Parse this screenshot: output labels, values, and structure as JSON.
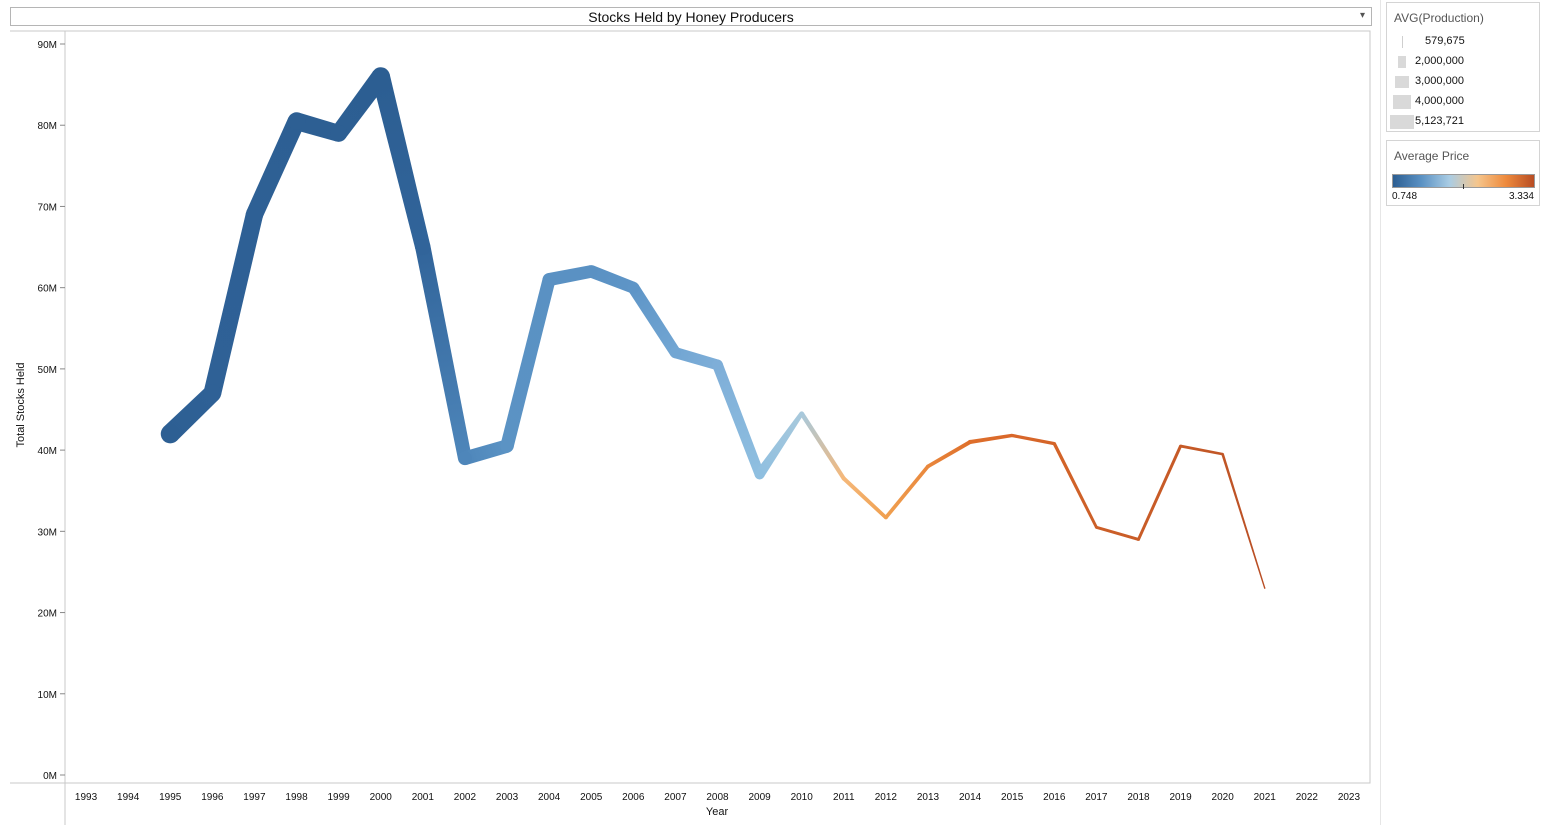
{
  "chart_data": {
    "type": "line",
    "title": "Stocks Held by Honey Producers",
    "xlabel": "Year",
    "ylabel": "Total Stocks Held",
    "x_ticks": [
      "1993",
      "1994",
      "1995",
      "1996",
      "1997",
      "1998",
      "1999",
      "2000",
      "2001",
      "2002",
      "2003",
      "2004",
      "2005",
      "2006",
      "2007",
      "2008",
      "2009",
      "2010",
      "2011",
      "2012",
      "2013",
      "2014",
      "2015",
      "2016",
      "2017",
      "2018",
      "2019",
      "2020",
      "2021",
      "2022",
      "2023"
    ],
    "y_ticks": [
      "0M",
      "10M",
      "20M",
      "30M",
      "40M",
      "50M",
      "60M",
      "70M",
      "80M",
      "90M"
    ],
    "xlim": [
      1992.5,
      2023.5
    ],
    "ylim": [
      0,
      92000000
    ],
    "series": [
      {
        "x": 1995,
        "stocks": 42000000,
        "avg_production": 5123721,
        "avg_price": 0.75,
        "color": "#2d5f93"
      },
      {
        "x": 1996,
        "stocks": 47000000,
        "avg_production": 4800000,
        "avg_price": 0.8,
        "color": "#2f6196"
      },
      {
        "x": 1997,
        "stocks": 69000000,
        "avg_production": 4700000,
        "avg_price": 0.78,
        "color": "#2e6095"
      },
      {
        "x": 1998,
        "stocks": 80500000,
        "avg_production": 4800000,
        "avg_price": 0.76,
        "color": "#2d5f93"
      },
      {
        "x": 1999,
        "stocks": 79000000,
        "avg_production": 4600000,
        "avg_price": 0.75,
        "color": "#2d5f93"
      },
      {
        "x": 2000,
        "stocks": 86000000,
        "avg_production": 5000000,
        "avg_price": 0.75,
        "color": "#2c5e92"
      },
      {
        "x": 2001,
        "stocks": 65000000,
        "avg_production": 4200000,
        "avg_price": 0.8,
        "color": "#31649a"
      },
      {
        "x": 2002,
        "stocks": 39000000,
        "avg_production": 3800000,
        "avg_price": 1.2,
        "color": "#4e86ba"
      },
      {
        "x": 2003,
        "stocks": 40500000,
        "avg_production": 3700000,
        "avg_price": 1.4,
        "color": "#5b93c4"
      },
      {
        "x": 2004,
        "stocks": 61000000,
        "avg_production": 3600000,
        "avg_price": 1.3,
        "color": "#5a91c3"
      },
      {
        "x": 2005,
        "stocks": 62000000,
        "avg_production": 3500000,
        "avg_price": 1.25,
        "color": "#5a91c3"
      },
      {
        "x": 2006,
        "stocks": 60000000,
        "avg_production": 3300000,
        "avg_price": 1.35,
        "color": "#5e95c7"
      },
      {
        "x": 2007,
        "stocks": 52000000,
        "avg_production": 3100000,
        "avg_price": 1.45,
        "color": "#72a6d3"
      },
      {
        "x": 2008,
        "stocks": 50500000,
        "avg_production": 3000000,
        "avg_price": 1.55,
        "color": "#7eaed8"
      },
      {
        "x": 2009,
        "stocks": 37000000,
        "avg_production": 2800000,
        "avg_price": 1.7,
        "color": "#8fbfe0"
      },
      {
        "x": 2010,
        "stocks": 44500000,
        "avg_production": 1400000,
        "avg_price": 1.9,
        "color": "#a8c9dc"
      },
      {
        "x": 2011,
        "stocks": 36500000,
        "avg_production": 1300000,
        "avg_price": 2.2,
        "color": "#f5b87a"
      },
      {
        "x": 2012,
        "stocks": 31700000,
        "avg_production": 1200000,
        "avg_price": 2.35,
        "color": "#f0a050"
      },
      {
        "x": 2013,
        "stocks": 38000000,
        "avg_production": 1200000,
        "avg_price": 2.55,
        "color": "#e9873c"
      },
      {
        "x": 2014,
        "stocks": 41000000,
        "avg_production": 1300000,
        "avg_price": 2.7,
        "color": "#de6f2b"
      },
      {
        "x": 2015,
        "stocks": 41800000,
        "avg_production": 1100000,
        "avg_price": 2.8,
        "color": "#d9672a"
      },
      {
        "x": 2016,
        "stocks": 40800000,
        "avg_production": 1100000,
        "avg_price": 2.9,
        "color": "#d46428"
      },
      {
        "x": 2017,
        "stocks": 30500000,
        "avg_production": 1000000,
        "avg_price": 3.0,
        "color": "#cc5f28"
      },
      {
        "x": 2018,
        "stocks": 29000000,
        "avg_production": 1000000,
        "avg_price": 3.05,
        "color": "#c95c27"
      },
      {
        "x": 2019,
        "stocks": 40500000,
        "avg_production": 1000000,
        "avg_price": 3.1,
        "color": "#c65a27"
      },
      {
        "x": 2020,
        "stocks": 39500000,
        "avg_production": 900000,
        "avg_price": 3.2,
        "color": "#c15626"
      },
      {
        "x": 2021,
        "stocks": 23000000,
        "avg_production": 579675,
        "avg_price": 3.334,
        "color": "#b84d24"
      }
    ]
  },
  "size_legend": {
    "title": "AVG(Production)",
    "items": [
      {
        "label": "579,675",
        "value": 579675
      },
      {
        "label": "2,000,000",
        "value": 2000000
      },
      {
        "label": "3,000,000",
        "value": 3000000
      },
      {
        "label": "4,000,000",
        "value": 4000000
      },
      {
        "label": "5,123,721",
        "value": 5123721
      }
    ]
  },
  "color_legend": {
    "title": "Average Price",
    "min_label": "0.748",
    "max_label": "3.334",
    "colors": [
      "#2c5e92",
      "#5a91c3",
      "#a9cce4",
      "#f5c58c",
      "#ee8a3c",
      "#b84d24"
    ]
  }
}
